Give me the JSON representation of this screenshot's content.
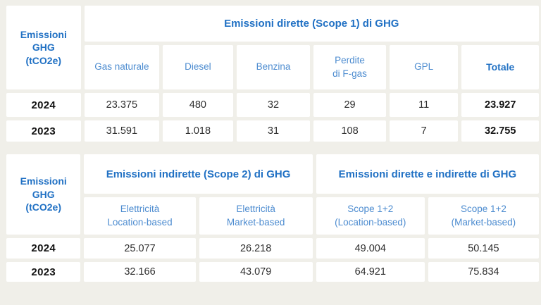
{
  "colors": {
    "page_background": "#f0efe9",
    "cell_background": "#ffffff",
    "header_blue": "#2171c4",
    "subheader_blue": "#4d8cd0",
    "data_text": "#2e2e2e",
    "year_text": "#121212"
  },
  "tables": {
    "scope1": {
      "row_header": "Emissioni\nGHG\n(tCO2e)",
      "group_header": "Emissioni dirette (Scope 1) di GHG",
      "columns": [
        "Gas naturale",
        "Diesel",
        "Benzina",
        "Perdite\ndi F-gas",
        "GPL",
        "Totale"
      ],
      "rows": [
        {
          "year": "2024",
          "values": [
            "23.375",
            "480",
            "32",
            "29",
            "11",
            "23.927"
          ]
        },
        {
          "year": "2023",
          "values": [
            "31.591",
            "1.018",
            "31",
            "108",
            "7",
            "32.755"
          ]
        }
      ]
    },
    "scope2": {
      "row_header": "Emissioni\nGHG\n(tCO2e)",
      "group_headers": [
        "Emissioni indirette (Scope 2) di GHG",
        "Emissioni dirette e indirette di GHG"
      ],
      "columns": [
        "Elettricità\nLocation-based",
        "Elettricità\nMarket-based",
        "Scope 1+2\n(Location-based)",
        "Scope 1+2\n(Market-based)"
      ],
      "rows": [
        {
          "year": "2024",
          "values": [
            "25.077",
            "26.218",
            "49.004",
            "50.145"
          ]
        },
        {
          "year": "2023",
          "values": [
            "32.166",
            "43.079",
            "64.921",
            "75.834"
          ]
        }
      ]
    }
  },
  "chart_data": [
    {
      "type": "table",
      "title": "Emissioni dirette (Scope 1) di GHG",
      "row_axis_label": "Emissioni GHG (tCO2e)",
      "columns": [
        "Gas naturale",
        "Diesel",
        "Benzina",
        "Perdite di F-gas",
        "GPL",
        "Totale"
      ],
      "rows": [
        {
          "label": "2024",
          "values": [
            23375,
            480,
            32,
            29,
            11,
            23927
          ]
        },
        {
          "label": "2023",
          "values": [
            31591,
            1018,
            31,
            108,
            7,
            32755
          ]
        }
      ]
    },
    {
      "type": "table",
      "title": "Emissioni indirette (Scope 2) e totali di GHG",
      "row_axis_label": "Emissioni GHG (tCO2e)",
      "column_groups": [
        {
          "label": "Emissioni indirette (Scope 2) di GHG",
          "span": 2
        },
        {
          "label": "Emissioni dirette e indirette di GHG",
          "span": 2
        }
      ],
      "columns": [
        "Elettricità Location-based",
        "Elettricità Market-based",
        "Scope 1+2 (Location-based)",
        "Scope 1+2 (Market-based)"
      ],
      "rows": [
        {
          "label": "2024",
          "values": [
            25077,
            26218,
            49004,
            50145
          ]
        },
        {
          "label": "2023",
          "values": [
            32166,
            43079,
            64921,
            75834
          ]
        }
      ]
    }
  ]
}
